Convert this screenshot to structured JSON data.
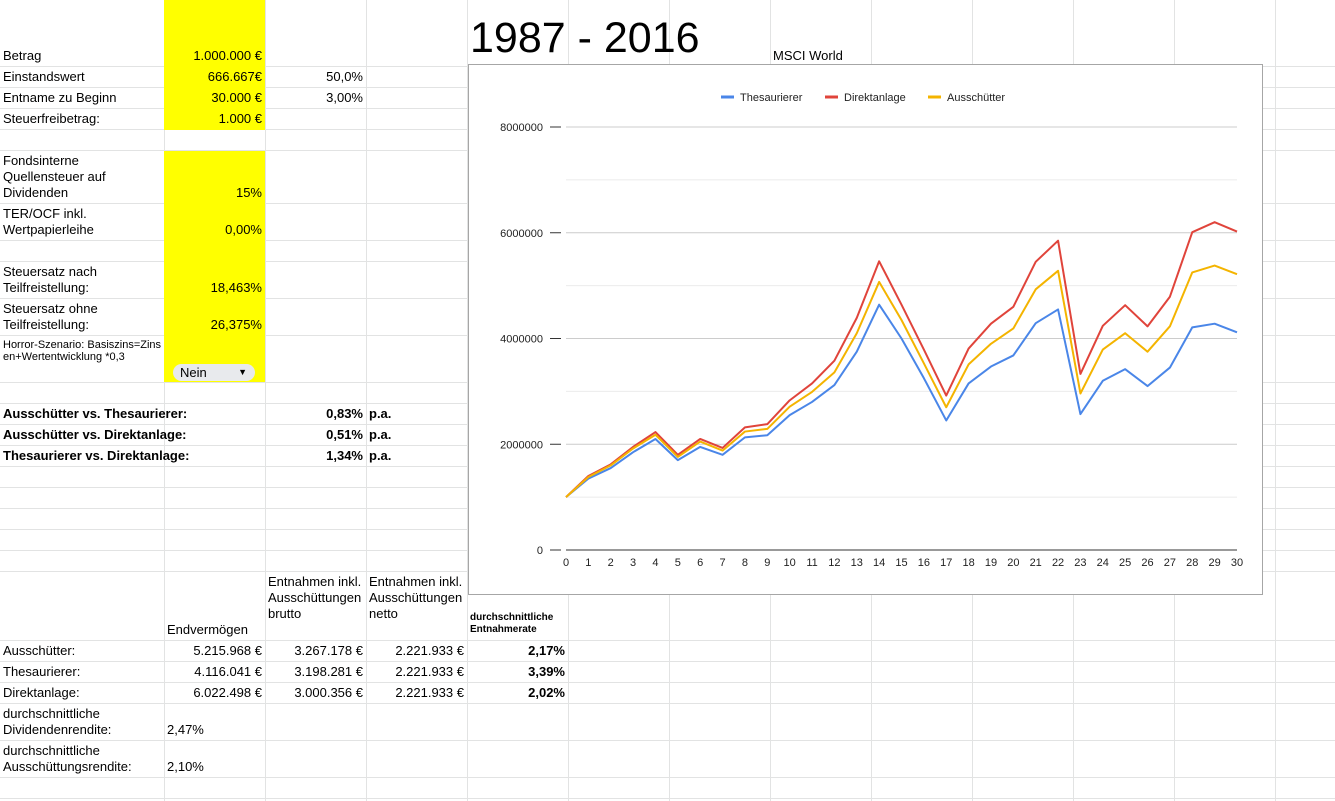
{
  "sheet": {
    "title": "1987 - 2016",
    "index_label": "MSCI World",
    "inputs": [
      {
        "label": "Betrag",
        "value": "1.000.000 €",
        "extra": ""
      },
      {
        "label": "Einstandswert",
        "value": "666.667€",
        "extra": "50,0%"
      },
      {
        "label": "Entname zu Beginn",
        "value": "30.000 €",
        "extra": "3,00%"
      },
      {
        "label": "Steuerfreibetrag:",
        "value": "1.000 €",
        "extra": ""
      },
      {
        "label": "Fondsinterne Quellensteuer auf Dividenden",
        "value": "15%",
        "extra": ""
      },
      {
        "label": "TER/OCF inkl. Wertpapierleihe",
        "value": "0,00%",
        "extra": ""
      },
      {
        "label": "Steuersatz nach Teilfreistellung:",
        "value": "18,463%",
        "extra": ""
      },
      {
        "label": "Steuersatz ohne Teilfreistellung:",
        "value": "26,375%",
        "extra": ""
      }
    ],
    "horror": {
      "label": "Horror-Szenario: Basiszins=Zinsen+Wertentwicklung *0,3",
      "selected": "Nein"
    },
    "comparisons": [
      {
        "label": "Ausschütter vs. Thesaurierer:",
        "value": "0,83%",
        "unit": "p.a."
      },
      {
        "label": "Ausschütter vs. Direktanlage:",
        "value": "0,51%",
        "unit": "p.a."
      },
      {
        "label": "Thesaurierer vs. Direktanlage:",
        "value": "1,34%",
        "unit": "p.a."
      }
    ],
    "results": {
      "headers": [
        "Endvermögen",
        "Entnahmen inkl. Ausschüttungen brutto",
        "Entnahmen inkl. Ausschüttungen netto",
        "durchschnittliche Entnahmerate"
      ],
      "rows": [
        {
          "label": "Ausschütter:",
          "end": "5.215.968 €",
          "brutto": "3.267.178 €",
          "netto": "2.221.933 €",
          "rate": "2,17%"
        },
        {
          "label": "Thesaurierer:",
          "end": "4.116.041 €",
          "brutto": "3.198.281 €",
          "netto": "2.221.933 €",
          "rate": "3,39%"
        },
        {
          "label": "Direktanlage:",
          "end": "6.022.498 €",
          "brutto": "3.000.356 €",
          "netto": "2.221.933 €",
          "rate": "2,02%"
        }
      ],
      "dividend_yield": {
        "label": "durchschnittliche Dividendenrendite:",
        "value": "2,47%"
      },
      "payout_yield": {
        "label": "durchschnittliche Ausschüttungsrendite:",
        "value": "2,10%"
      }
    }
  },
  "colors": {
    "thesaurierer": "#4a86e8",
    "direktanlage": "#e0443b",
    "ausschuetter": "#f4b400",
    "input_fill": "#ffff00"
  },
  "chart_data": {
    "type": "line",
    "title": "",
    "xlabel": "",
    "ylabel": "",
    "x": [
      0,
      1,
      2,
      3,
      4,
      5,
      6,
      7,
      8,
      9,
      10,
      11,
      12,
      13,
      14,
      15,
      16,
      17,
      18,
      19,
      20,
      21,
      22,
      23,
      24,
      25,
      26,
      27,
      28,
      29,
      30
    ],
    "ylim": [
      0,
      8000000
    ],
    "yticks": [
      0,
      2000000,
      4000000,
      6000000,
      8000000
    ],
    "legend_position": "top",
    "series": [
      {
        "name": "Thesaurierer",
        "color": "#4a86e8",
        "values": [
          1000000,
          1350000,
          1550000,
          1850000,
          2100000,
          1700000,
          1950000,
          1800000,
          2130000,
          2170000,
          2550000,
          2800000,
          3120000,
          3750000,
          4640000,
          4000000,
          3250000,
          2450000,
          3150000,
          3470000,
          3680000,
          4290000,
          4550000,
          2570000,
          3200000,
          3420000,
          3100000,
          3450000,
          4210000,
          4280000,
          4116041
        ]
      },
      {
        "name": "Direktanlage",
        "color": "#e0443b",
        "values": [
          1000000,
          1400000,
          1620000,
          1950000,
          2230000,
          1800000,
          2100000,
          1930000,
          2320000,
          2380000,
          2830000,
          3150000,
          3580000,
          4390000,
          5460000,
          4640000,
          3790000,
          2920000,
          3810000,
          4280000,
          4600000,
          5450000,
          5850000,
          3330000,
          4240000,
          4630000,
          4230000,
          4790000,
          6010000,
          6200000,
          6022498
        ]
      },
      {
        "name": "Ausschütter",
        "color": "#f4b400",
        "values": [
          1000000,
          1380000,
          1600000,
          1920000,
          2180000,
          1760000,
          2050000,
          1880000,
          2240000,
          2290000,
          2710000,
          2990000,
          3360000,
          4100000,
          5070000,
          4350000,
          3530000,
          2700000,
          3510000,
          3900000,
          4190000,
          4930000,
          5280000,
          2960000,
          3790000,
          4100000,
          3750000,
          4230000,
          5250000,
          5380000,
          5215968
        ]
      }
    ]
  }
}
